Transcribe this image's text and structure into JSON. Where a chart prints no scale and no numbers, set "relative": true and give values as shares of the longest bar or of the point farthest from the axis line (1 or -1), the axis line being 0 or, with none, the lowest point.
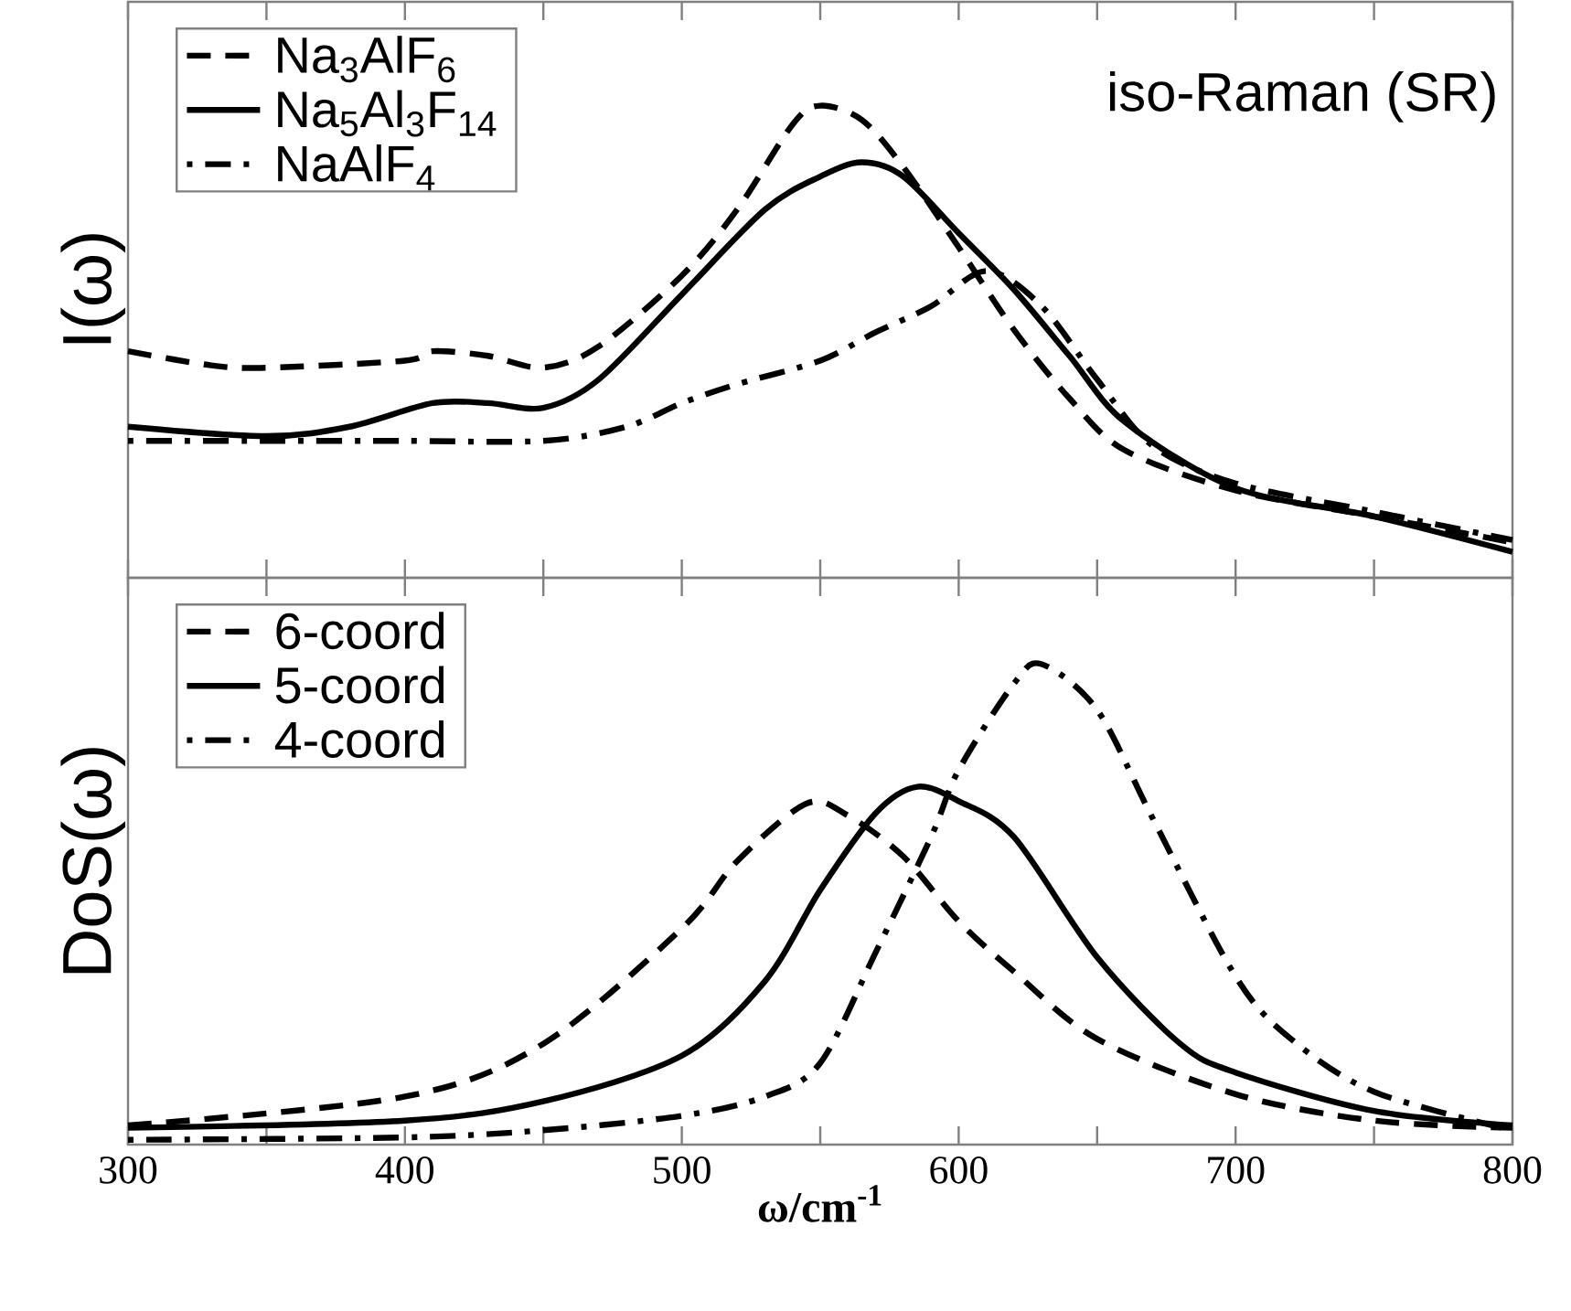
{
  "chart_data": [
    {
      "type": "line",
      "relative": true,
      "ylabel": "I(ω)",
      "annotations": [
        "iso-Raman (SR)"
      ],
      "xlim": [
        300,
        800
      ],
      "xticks": [
        300,
        400,
        500,
        600,
        700,
        800
      ],
      "tick_labels": false,
      "legend": "top left",
      "series": [
        {
          "name": "Na$_{3}$AlF$_{6}$",
          "color": "#000000",
          "line_style": "dashed",
          "x": [
            300,
            330,
            350,
            400,
            410,
            430,
            450,
            470,
            500,
            520,
            540,
            550,
            565,
            580,
            600,
            620,
            640,
            660,
            700,
            750,
            800
          ],
          "values": [
            0.48,
            0.45,
            0.445,
            0.46,
            0.48,
            0.47,
            0.445,
            0.49,
            0.64,
            0.78,
            0.96,
            1.0,
            0.97,
            0.87,
            0.7,
            0.525,
            0.38,
            0.27,
            0.185,
            0.13,
            0.075
          ]
        },
        {
          "name": "Na$_{5}$Al$_{3}$F$_{14}$",
          "color": "#000000",
          "line_style": "solid",
          "x": [
            300,
            350,
            380,
            410,
            430,
            450,
            470,
            500,
            530,
            550,
            565,
            580,
            600,
            620,
            640,
            660,
            700,
            750,
            800
          ],
          "values": [
            0.32,
            0.3,
            0.32,
            0.37,
            0.37,
            0.36,
            0.42,
            0.6,
            0.78,
            0.85,
            0.88,
            0.85,
            0.73,
            0.61,
            0.47,
            0.33,
            0.19,
            0.13,
            0.055
          ]
        },
        {
          "name": "NaAlF$_{4}$",
          "color": "#000000",
          "line_style": "dashdot",
          "x": [
            300,
            350,
            400,
            450,
            480,
            500,
            520,
            550,
            570,
            590,
            610,
            630,
            650,
            670,
            700,
            750,
            800
          ],
          "values": [
            0.29,
            0.29,
            0.29,
            0.29,
            0.32,
            0.37,
            0.41,
            0.46,
            0.52,
            0.575,
            0.65,
            0.575,
            0.42,
            0.28,
            0.2,
            0.14,
            0.08
          ]
        }
      ]
    },
    {
      "type": "line",
      "relative": true,
      "ylabel": "DoS(ω)",
      "xlabel": "ω/cm$^{-1}$",
      "xlim": [
        300,
        800
      ],
      "xticks": [
        300,
        400,
        500,
        600,
        700,
        800
      ],
      "tick_labels": "x",
      "legend": "top left",
      "series": [
        {
          "name": "6-coord",
          "color": "#000000",
          "line_style": "dashed",
          "x": [
            300,
            400,
            450,
            500,
            520,
            545,
            560,
            580,
            600,
            620,
            650,
            700,
            750,
            800
          ],
          "values": [
            0.04,
            0.1,
            0.21,
            0.45,
            0.59,
            0.71,
            0.685,
            0.6,
            0.465,
            0.36,
            0.22,
            0.105,
            0.05,
            0.035
          ]
        },
        {
          "name": "5-coord",
          "color": "#000000",
          "line_style": "solid",
          "x": [
            300,
            400,
            450,
            500,
            530,
            550,
            570,
            585,
            600,
            620,
            650,
            680,
            700,
            750,
            800
          ],
          "values": [
            0.035,
            0.05,
            0.09,
            0.185,
            0.34,
            0.53,
            0.69,
            0.745,
            0.715,
            0.64,
            0.39,
            0.21,
            0.15,
            0.07,
            0.04
          ]
        },
        {
          "name": "4-coord",
          "color": "#000000",
          "line_style": "dashdot",
          "x": [
            300,
            400,
            450,
            500,
            530,
            550,
            570,
            590,
            600,
            620,
            630,
            650,
            670,
            700,
            720,
            750,
            800
          ],
          "values": [
            0.01,
            0.015,
            0.03,
            0.06,
            0.1,
            0.17,
            0.4,
            0.64,
            0.78,
            0.96,
            1.0,
            0.905,
            0.68,
            0.35,
            0.22,
            0.11,
            0.03
          ]
        }
      ]
    }
  ]
}
